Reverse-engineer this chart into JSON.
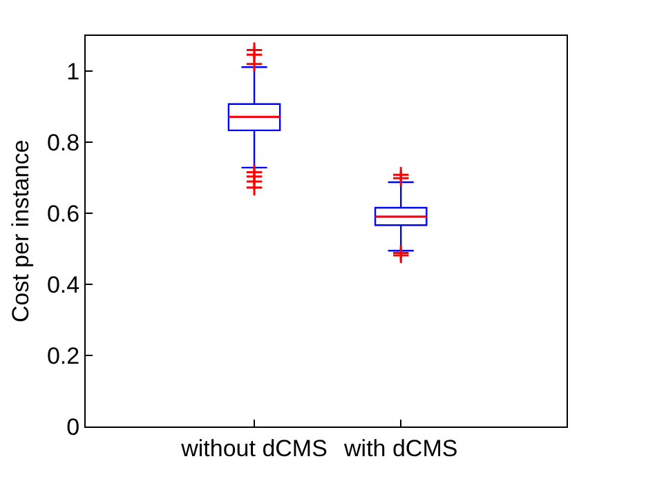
{
  "chart_data": {
    "type": "box",
    "ylabel": "Cost per instance",
    "categories": [
      "without dCMS",
      "with dCMS"
    ],
    "boxes": [
      {
        "low": 0.729,
        "q1": 0.834,
        "median": 0.872,
        "q3": 0.908,
        "high": 1.012,
        "outliers": [
          1.06,
          1.047,
          1.021,
          0.716,
          0.704,
          0.69,
          0.673
        ]
      },
      {
        "low": 0.495,
        "q1": 0.567,
        "median": 0.591,
        "q3": 0.616,
        "high": 0.688,
        "outliers": [
          0.709,
          0.699,
          0.489,
          0.482
        ]
      }
    ],
    "color": "#0000ff",
    "marker": "cross",
    "ylim": [
      0,
      1.1
    ],
    "yticks": [
      0,
      0.2,
      0.4,
      0.6,
      0.8,
      1
    ],
    "grid": false
  }
}
